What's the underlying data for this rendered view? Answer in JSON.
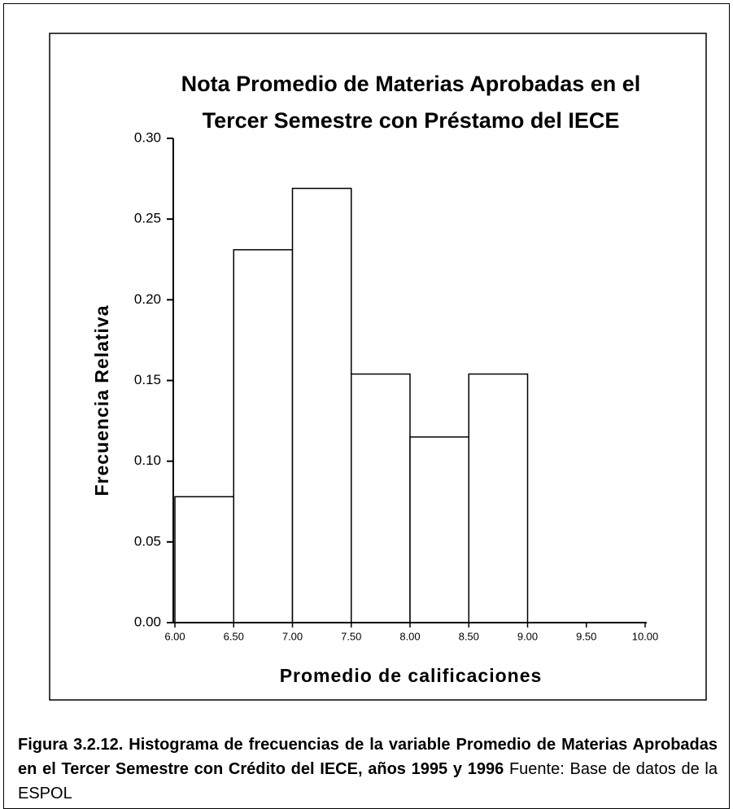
{
  "chart_data": {
    "type": "histogram",
    "title": [
      "Nota Promedio de Materias Aprobadas en el",
      "Tercer Semestre con Préstamo del IECE"
    ],
    "x_label": "Promedio de calificaciones",
    "y_label": "Frecuencia Relativa",
    "bins": [
      6.0,
      6.5,
      7.0,
      7.5,
      8.0,
      8.5,
      9.0
    ],
    "values": [
      0.078,
      0.231,
      0.269,
      0.154,
      0.115,
      0.154
    ],
    "color": "#ffffff",
    "xlim": [
      6.0,
      10.0
    ],
    "xticks": [
      {
        "value": 6.0,
        "label": "6.00"
      },
      {
        "value": 6.5,
        "label": "6.50"
      },
      {
        "value": 7.0,
        "label": "7.00"
      },
      {
        "value": 7.5,
        "label": "7.50"
      },
      {
        "value": 8.0,
        "label": "8.00"
      },
      {
        "value": 8.5,
        "label": "8.50"
      },
      {
        "value": 9.0,
        "label": "9.00"
      },
      {
        "value": 9.5,
        "label": "9.50"
      },
      {
        "value": 10.0,
        "label": "10.00"
      }
    ],
    "ylim": [
      0,
      0.3
    ],
    "yticks": [
      {
        "value": 0,
        "label": "0.00"
      },
      {
        "value": 0.05,
        "label": "0.05"
      },
      {
        "value": 0.1,
        "label": "0.10"
      },
      {
        "value": 0.15,
        "label": "0.15"
      },
      {
        "value": 0.2,
        "label": "0.20"
      },
      {
        "value": 0.25,
        "label": "0.25"
      },
      {
        "value": 0.3,
        "label": "0.30"
      }
    ],
    "grid": false
  },
  "caption": "Figura 3.2.12. Histograma de frecuencias de la variable Promedio de Materias Aprobadas en el Tercer Semestre con Crédito del IECE, años 1995 y 1996",
  "source": "Fuente: Base de datos de la ESPOL"
}
